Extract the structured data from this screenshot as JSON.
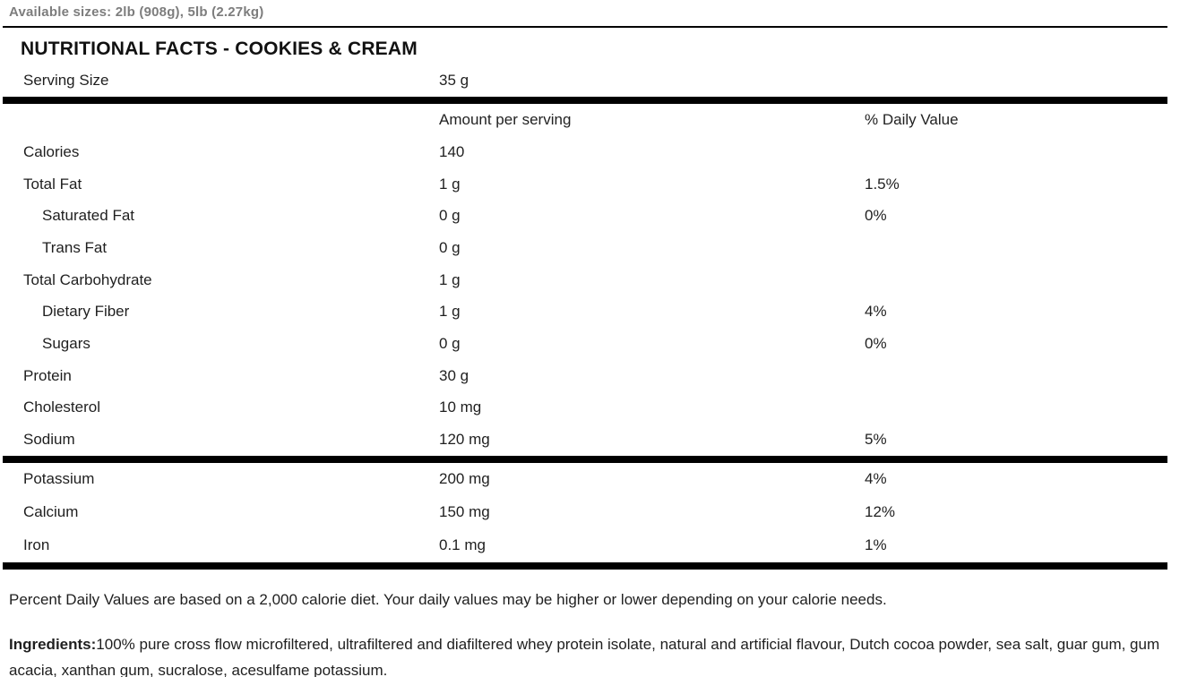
{
  "page": {
    "available_sizes": "Available sizes: 2lb (908g), 5lb (2.27kg)"
  },
  "colors": {
    "rule": "#000000",
    "muted_text": "#7d7d7d",
    "body_text": "#1f1f1f"
  },
  "nutrition_table": {
    "title": "NUTRITIONAL FACTS - COOKIES & CREAM",
    "serving": {
      "label": "Serving Size",
      "value": "35 g"
    },
    "headers": {
      "amount": "Amount per serving",
      "daily_value": "% Daily Value"
    },
    "rows": [
      {
        "label": "Calories",
        "indent": false,
        "amount": "140",
        "dv": ""
      },
      {
        "label": "Total Fat",
        "indent": false,
        "amount": "1 g",
        "dv": "1.5%"
      },
      {
        "label": "Saturated Fat",
        "indent": true,
        "amount": "0 g",
        "dv": "0%"
      },
      {
        "label": "Trans Fat",
        "indent": true,
        "amount": "0 g",
        "dv": ""
      },
      {
        "label": "Total Carbohydrate",
        "indent": false,
        "amount": "1 g",
        "dv": ""
      },
      {
        "label": "Dietary Fiber",
        "indent": true,
        "amount": "1 g",
        "dv": "4%"
      },
      {
        "label": "Sugars",
        "indent": true,
        "amount": "0 g",
        "dv": "0%"
      },
      {
        "label": "Protein",
        "indent": false,
        "amount": "30 g",
        "dv": ""
      },
      {
        "label": "Cholesterol",
        "indent": false,
        "amount": "10 mg",
        "dv": ""
      },
      {
        "label": "Sodium",
        "indent": false,
        "amount": "120 mg",
        "dv": "5%"
      }
    ],
    "minerals": [
      {
        "label": "Potassium",
        "amount": "200 mg",
        "dv": "4%"
      },
      {
        "label": "Calcium",
        "amount": "150 mg",
        "dv": "12%"
      },
      {
        "label": "Iron",
        "amount": "0.1 mg",
        "dv": "1%"
      }
    ]
  },
  "footer": {
    "daily_value_note": "Percent Daily Values are based on a 2,000 calorie diet. Your daily values may be higher or lower depending on your calorie needs.",
    "ingredients_label": "Ingredients:",
    "ingredients_text": "100% pure cross flow microfiltered, ultrafiltered and diafiltered whey protein isolate, natural and artificial flavour, Dutch cocoa powder, sea salt, guar gum, gum acacia, xanthan gum, sucralose, acesulfame potassium."
  }
}
